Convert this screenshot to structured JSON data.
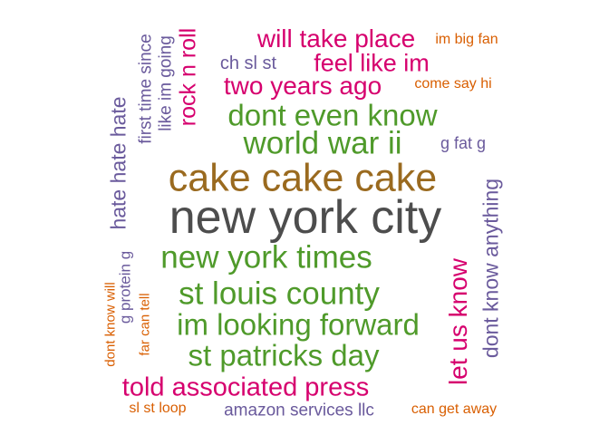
{
  "palette": {
    "gray": "#4d4d4d",
    "brown": "#9a6a1f",
    "green": "#4f9a2a",
    "magenta": "#d6006e",
    "purple": "#6a5a9c",
    "orange": "#d95f02"
  },
  "words": [
    {
      "text": "new york city",
      "color": "gray"
    },
    {
      "text": "cake cake cake",
      "color": "brown"
    },
    {
      "text": "new york times",
      "color": "green"
    },
    {
      "text": "st louis county",
      "color": "green"
    },
    {
      "text": "im looking forward",
      "color": "green"
    },
    {
      "text": "world war ii",
      "color": "green"
    },
    {
      "text": "dont even know",
      "color": "green"
    },
    {
      "text": "st patricks day",
      "color": "green"
    },
    {
      "text": "told associated press",
      "color": "magenta"
    },
    {
      "text": "will take place",
      "color": "magenta"
    },
    {
      "text": "two years ago",
      "color": "magenta"
    },
    {
      "text": "feel like im",
      "color": "magenta"
    },
    {
      "text": "let us know",
      "color": "magenta"
    },
    {
      "text": "rock n roll",
      "color": "magenta"
    },
    {
      "text": "hate hate hate",
      "color": "purple"
    },
    {
      "text": "dont know anything",
      "color": "purple"
    },
    {
      "text": "like im going",
      "color": "purple"
    },
    {
      "text": "first time since",
      "color": "purple"
    },
    {
      "text": "ch sl st",
      "color": "purple"
    },
    {
      "text": "g fat g",
      "color": "purple"
    },
    {
      "text": "g protein g",
      "color": "purple"
    },
    {
      "text": "amazon services llc",
      "color": "purple"
    },
    {
      "text": "im big fan",
      "color": "orange"
    },
    {
      "text": "come say hi",
      "color": "orange"
    },
    {
      "text": "can get away",
      "color": "orange"
    },
    {
      "text": "sl st loop",
      "color": "orange"
    },
    {
      "text": "far can tell",
      "color": "orange"
    },
    {
      "text": "dont know will",
      "color": "orange"
    }
  ]
}
